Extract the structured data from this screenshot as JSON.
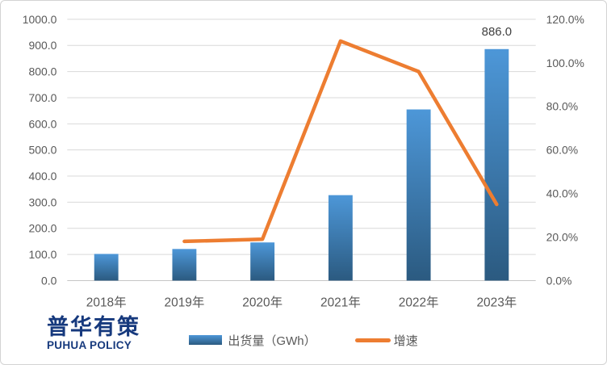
{
  "chart_data": {
    "type": "combo_bar_line",
    "title": "",
    "categories": [
      "2018年",
      "2019年",
      "2020年",
      "2021年",
      "2022年",
      "2023年"
    ],
    "series": [
      {
        "name": "出货量（GWh）",
        "type": "bar",
        "axis": "left",
        "unit": "GWh",
        "values": [
          102,
          121,
          146,
          327,
          655,
          886
        ]
      },
      {
        "name": "增速",
        "type": "line",
        "axis": "right",
        "unit": "%",
        "values_pct": [
          null,
          18,
          19,
          110,
          96,
          35
        ]
      }
    ],
    "left_axis": {
      "min": 0,
      "max": 1000,
      "step": 100,
      "tick_labels": [
        "1000.0",
        "900.0",
        "800.0",
        "700.0",
        "600.0",
        "500.0",
        "400.0",
        "300.0",
        "200.0",
        "100.0",
        "0.0"
      ]
    },
    "right_axis": {
      "min": 0,
      "max": 120,
      "step": 20,
      "tick_labels": [
        "120.0%",
        "100.0%",
        "80.0%",
        "60.0%",
        "40.0%",
        "20.0%",
        "0.0%"
      ]
    },
    "data_labels": [
      {
        "category_index": 5,
        "text": "886.0"
      }
    ],
    "grid": "horizontal-only",
    "legend_position": "bottom"
  },
  "legend": {
    "bar_label": "出货量（GWh）",
    "line_label": "增速"
  },
  "logo": {
    "cn": "普华有策",
    "en": "PUHUA POLICY"
  },
  "colors": {
    "bar_top": "#4d97d8",
    "bar_bottom": "#2b5a80",
    "line": "#ed7d31",
    "gridline": "#d9d9d9",
    "axis_line": "#c6c6c6",
    "tick_text": "#595959",
    "data_label_text": "#404040",
    "logo_blue": "#16397d"
  }
}
